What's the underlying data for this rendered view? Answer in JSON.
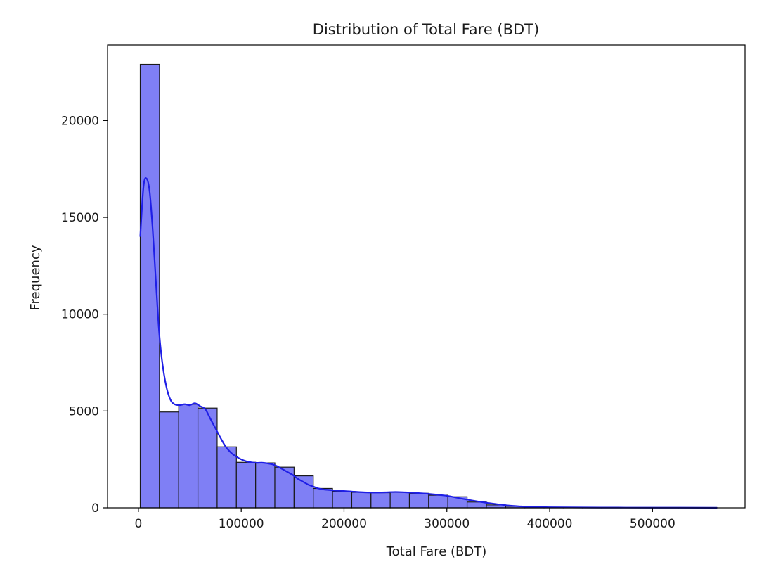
{
  "chart_data": {
    "type": "bar",
    "title": "Distribution of Total Fare (BDT)",
    "xlabel": "Total Fare (BDT)",
    "ylabel": "Frequency",
    "xlim": [
      -30000,
      590000
    ],
    "ylim": [
      0,
      23900
    ],
    "xticks": [
      0,
      100000,
      200000,
      300000,
      400000,
      500000
    ],
    "yticks": [
      0,
      5000,
      10000,
      15000,
      20000
    ],
    "grid": false,
    "bar_color": "#7f7ff5",
    "bar_edge_color": "#1a1a1a",
    "kde_color": "#1f1fe6",
    "bins": [
      {
        "x0": 1800,
        "x1": 20500,
        "count": 22900
      },
      {
        "x0": 20500,
        "x1": 39200,
        "count": 4950
      },
      {
        "x0": 39200,
        "x1": 57900,
        "count": 5350
      },
      {
        "x0": 57900,
        "x1": 76600,
        "count": 5150
      },
      {
        "x0": 76600,
        "x1": 95300,
        "count": 3150
      },
      {
        "x0": 95300,
        "x1": 114000,
        "count": 2350
      },
      {
        "x0": 114000,
        "x1": 132700,
        "count": 2320
      },
      {
        "x0": 132700,
        "x1": 151400,
        "count": 2100
      },
      {
        "x0": 151400,
        "x1": 170100,
        "count": 1650
      },
      {
        "x0": 170100,
        "x1": 188800,
        "count": 1000
      },
      {
        "x0": 188800,
        "x1": 207500,
        "count": 850
      },
      {
        "x0": 207500,
        "x1": 226200,
        "count": 800
      },
      {
        "x0": 226200,
        "x1": 244900,
        "count": 780
      },
      {
        "x0": 244900,
        "x1": 263600,
        "count": 800
      },
      {
        "x0": 263600,
        "x1": 282300,
        "count": 750
      },
      {
        "x0": 282300,
        "x1": 301000,
        "count": 650
      },
      {
        "x0": 301000,
        "x1": 319700,
        "count": 570
      },
      {
        "x0": 319700,
        "x1": 338400,
        "count": 300
      },
      {
        "x0": 338400,
        "x1": 357100,
        "count": 150
      },
      {
        "x0": 357100,
        "x1": 375800,
        "count": 80
      },
      {
        "x0": 375800,
        "x1": 394500,
        "count": 40
      },
      {
        "x0": 394500,
        "x1": 413200,
        "count": 25
      },
      {
        "x0": 413200,
        "x1": 431900,
        "count": 15
      },
      {
        "x0": 431900,
        "x1": 450600,
        "count": 10
      },
      {
        "x0": 450600,
        "x1": 469300,
        "count": 8
      },
      {
        "x0": 469300,
        "x1": 488000,
        "count": 6
      },
      {
        "x0": 488000,
        "x1": 506700,
        "count": 5
      },
      {
        "x0": 506700,
        "x1": 525400,
        "count": 4
      },
      {
        "x0": 525400,
        "x1": 544100,
        "count": 3
      },
      {
        "x0": 544100,
        "x1": 562800,
        "count": 3
      }
    ],
    "kde": {
      "x": [
        1800,
        5000,
        8000,
        11000,
        14000,
        17000,
        20000,
        23000,
        27000,
        31000,
        35000,
        40000,
        45000,
        50000,
        55000,
        60000,
        65000,
        70000,
        75000,
        80000,
        85000,
        90000,
        95000,
        100000,
        105000,
        110000,
        115000,
        120000,
        125000,
        130000,
        135000,
        140000,
        145000,
        150000,
        155000,
        160000,
        165000,
        170000,
        175000,
        180000,
        190000,
        200000,
        210000,
        220000,
        230000,
        240000,
        250000,
        260000,
        270000,
        280000,
        290000,
        300000,
        310000,
        320000,
        330000,
        340000,
        350000,
        360000,
        370000,
        380000,
        400000,
        450000,
        500000,
        562800
      ],
      "y": [
        14000,
        16600,
        17000,
        16300,
        14300,
        11700,
        9200,
        7600,
        6300,
        5600,
        5350,
        5300,
        5350,
        5300,
        5400,
        5250,
        5100,
        4600,
        4100,
        3600,
        3150,
        2850,
        2650,
        2500,
        2400,
        2350,
        2320,
        2330,
        2300,
        2250,
        2150,
        2000,
        1850,
        1700,
        1500,
        1350,
        1200,
        1100,
        1000,
        950,
        900,
        870,
        830,
        800,
        790,
        800,
        820,
        800,
        770,
        730,
        680,
        620,
        520,
        420,
        330,
        250,
        180,
        120,
        80,
        50,
        30,
        15,
        10,
        5
      ]
    }
  }
}
